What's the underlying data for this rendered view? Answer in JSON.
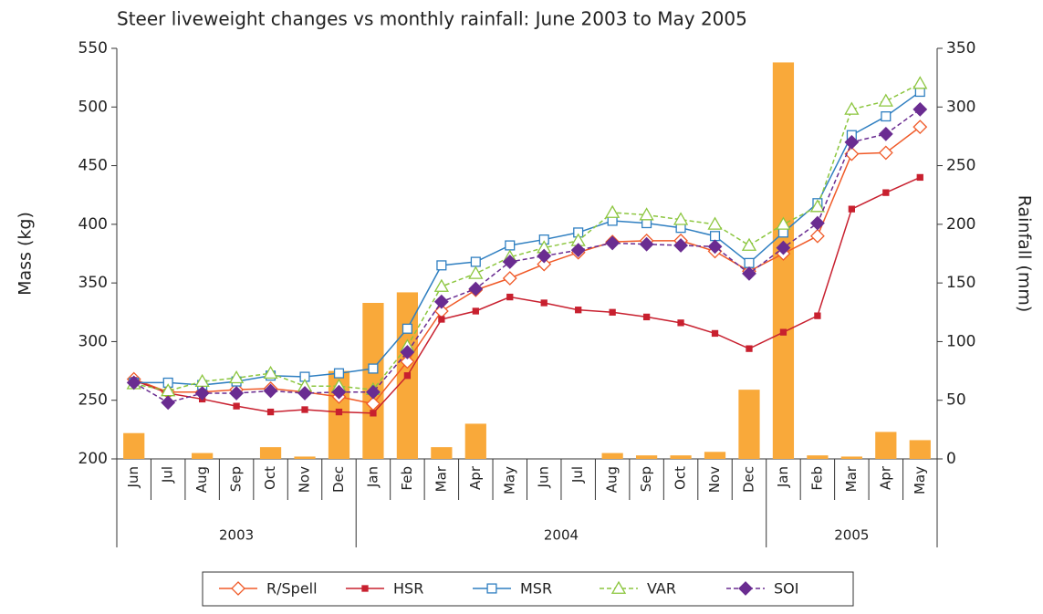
{
  "chart_data": {
    "type": "combo",
    "title": "Steer liveweight changes vs monthly rainfall: June 2003 to May 2005",
    "y_label": "Mass (kg)",
    "y2_label": "Rainfall (mm)",
    "categories": [
      "Jun",
      "Jul",
      "Aug",
      "Sep",
      "Oct",
      "Nov",
      "Dec",
      "Jan",
      "Feb",
      "Mar",
      "Apr",
      "May",
      "Jun",
      "Jul",
      "Aug",
      "Sep",
      "Oct",
      "Nov",
      "Dec",
      "Jan",
      "Feb",
      "Mar",
      "Apr",
      "May"
    ],
    "category_groups": [
      {
        "label": "2003",
        "count": 7
      },
      {
        "label": "2004",
        "count": 12
      },
      {
        "label": "2005",
        "count": 5
      }
    ],
    "ylim": [
      200,
      550
    ],
    "yticks": [
      200,
      250,
      300,
      350,
      400,
      450,
      500,
      550
    ],
    "y2lim": [
      0,
      350
    ],
    "y2ticks": [
      0,
      50,
      100,
      150,
      200,
      250,
      300,
      350
    ],
    "series": [
      {
        "name": "Rainfall (mm)",
        "type": "bar",
        "axis": "y2",
        "color": "#f9a93a",
        "in_legend": false,
        "values": [
          22,
          0,
          5,
          0,
          10,
          2,
          75,
          133,
          142,
          10,
          30,
          0,
          0,
          0,
          5,
          3,
          3,
          6,
          59,
          338,
          3,
          2,
          23,
          16
        ]
      },
      {
        "name": "R/Spell",
        "type": "line",
        "axis": "y",
        "color": "#f05a28",
        "marker": "diamond",
        "filled": false,
        "dashed": false,
        "values": [
          268,
          257,
          257,
          259,
          260,
          257,
          253,
          247,
          283,
          326,
          344,
          354,
          366,
          376,
          385,
          386,
          386,
          377,
          360,
          375,
          390,
          460,
          461,
          483
        ]
      },
      {
        "name": "HSR",
        "type": "line",
        "axis": "y",
        "color": "#c8202f",
        "marker": "small-square",
        "filled": true,
        "dashed": false,
        "values": [
          267,
          256,
          251,
          245,
          240,
          242,
          240,
          239,
          271,
          319,
          326,
          338,
          333,
          327,
          325,
          321,
          316,
          307,
          294,
          308,
          322,
          413,
          427,
          440
        ]
      },
      {
        "name": "MSR",
        "type": "line",
        "axis": "y",
        "color": "#2f7fc1",
        "marker": "square",
        "filled": false,
        "dashed": false,
        "values": [
          265,
          265,
          263,
          266,
          271,
          270,
          273,
          277,
          311,
          365,
          368,
          382,
          387,
          393,
          403,
          401,
          397,
          390,
          367,
          393,
          418,
          476,
          492,
          513
        ]
      },
      {
        "name": "VAR",
        "type": "line",
        "axis": "y",
        "color": "#8cc63f",
        "marker": "triangle",
        "filled": false,
        "dashed": true,
        "values": [
          264,
          258,
          266,
          269,
          273,
          262,
          262,
          259,
          296,
          347,
          358,
          372,
          380,
          386,
          410,
          408,
          404,
          400,
          382,
          400,
          415,
          498,
          505,
          520
        ]
      },
      {
        "name": "SOI",
        "type": "line",
        "axis": "y",
        "color": "#6a2c91",
        "marker": "diamond",
        "filled": true,
        "dashed": true,
        "values": [
          265,
          248,
          256,
          256,
          258,
          256,
          257,
          257,
          291,
          334,
          345,
          368,
          373,
          378,
          384,
          383,
          382,
          381,
          358,
          380,
          401,
          470,
          477,
          498
        ]
      }
    ],
    "grid": false
  }
}
